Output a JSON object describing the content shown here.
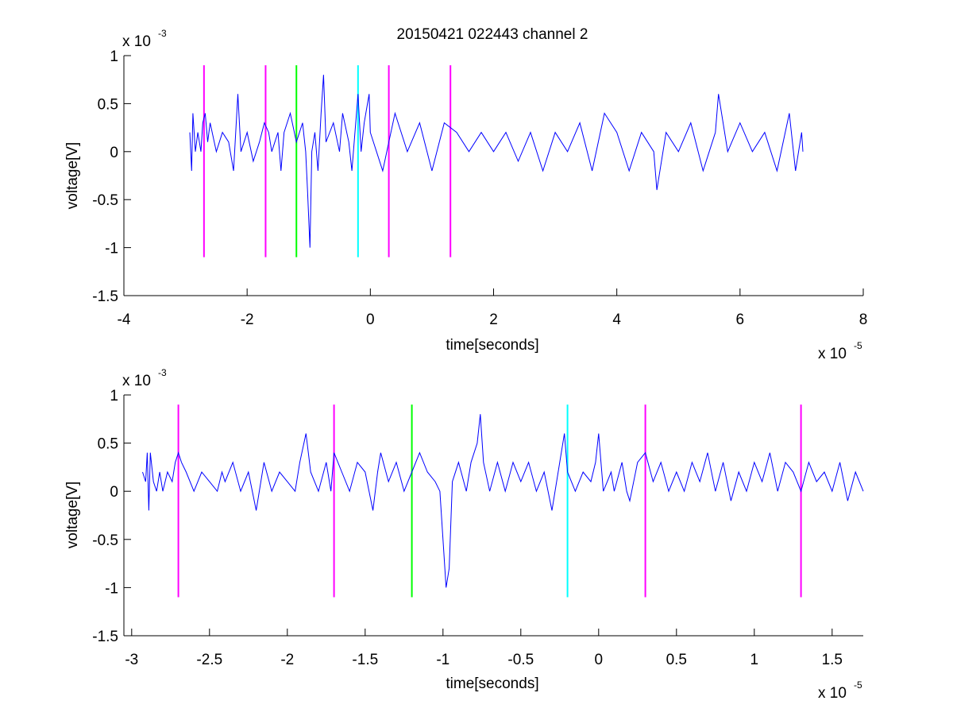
{
  "figure": {
    "title": "20150421 022443 channel 2"
  },
  "chart_data": [
    {
      "type": "line",
      "title": "20150421 022443 channel 2",
      "xlabel": "time[seconds]",
      "ylabel": "voltage[V]",
      "x_exponent_label": "x 10",
      "x_exponent": "-5",
      "y_exponent_label": "x 10",
      "y_exponent": "-3",
      "xlim": [
        -4,
        8
      ],
      "ylim": [
        -1.5,
        1
      ],
      "xticks": [
        -4,
        -2,
        0,
        2,
        4,
        6,
        8
      ],
      "xtick_labels": [
        "-4",
        "-2",
        "0",
        "2",
        "4",
        "6",
        "8"
      ],
      "yticks": [
        -1.5,
        -1,
        -0.5,
        0,
        0.5,
        1
      ],
      "ytick_labels": [
        "-1.5",
        "-1",
        "-0.5",
        "0",
        "0.5",
        "1"
      ],
      "grid": false,
      "series": [
        {
          "color": "#0000ff",
          "x_range": [
            -2.93,
            7.02
          ],
          "points": [
            [
              -2.93,
              0.2
            ],
            [
              -2.9,
              -0.2
            ],
            [
              -2.88,
              0.4
            ],
            [
              -2.84,
              0.0
            ],
            [
              -2.8,
              0.2
            ],
            [
              -2.75,
              0.0
            ],
            [
              -2.72,
              0.3
            ],
            [
              -2.68,
              0.4
            ],
            [
              -2.64,
              0.1
            ],
            [
              -2.6,
              0.3
            ],
            [
              -2.5,
              0.0
            ],
            [
              -2.4,
              0.2
            ],
            [
              -2.3,
              0.1
            ],
            [
              -2.22,
              -0.2
            ],
            [
              -2.15,
              0.6
            ],
            [
              -2.1,
              0.0
            ],
            [
              -2.0,
              0.2
            ],
            [
              -1.9,
              -0.1
            ],
            [
              -1.8,
              0.1
            ],
            [
              -1.72,
              0.3
            ],
            [
              -1.65,
              0.2
            ],
            [
              -1.6,
              0.0
            ],
            [
              -1.5,
              0.2
            ],
            [
              -1.45,
              -0.2
            ],
            [
              -1.4,
              0.2
            ],
            [
              -1.3,
              0.4
            ],
            [
              -1.2,
              0.1
            ],
            [
              -1.1,
              0.3
            ],
            [
              -1.05,
              0.0
            ],
            [
              -1.02,
              -0.4
            ],
            [
              -0.98,
              -1.0
            ],
            [
              -0.95,
              0.0
            ],
            [
              -0.9,
              0.2
            ],
            [
              -0.85,
              -0.2
            ],
            [
              -0.8,
              0.4
            ],
            [
              -0.76,
              0.8
            ],
            [
              -0.72,
              0.1
            ],
            [
              -0.6,
              0.3
            ],
            [
              -0.5,
              0.0
            ],
            [
              -0.45,
              0.4
            ],
            [
              -0.35,
              0.1
            ],
            [
              -0.3,
              -0.2
            ],
            [
              -0.2,
              0.6
            ],
            [
              -0.15,
              0.0
            ],
            [
              -0.1,
              0.3
            ],
            [
              -0.02,
              0.6
            ],
            [
              0.0,
              0.2
            ],
            [
              0.1,
              0.0
            ],
            [
              0.2,
              -0.2
            ],
            [
              0.3,
              0.1
            ],
            [
              0.4,
              0.4
            ],
            [
              0.6,
              0.0
            ],
            [
              0.8,
              0.3
            ],
            [
              1.0,
              -0.2
            ],
            [
              1.2,
              0.3
            ],
            [
              1.4,
              0.2
            ],
            [
              1.6,
              0.0
            ],
            [
              1.8,
              0.2
            ],
            [
              2.0,
              0.0
            ],
            [
              2.2,
              0.2
            ],
            [
              2.4,
              -0.1
            ],
            [
              2.6,
              0.2
            ],
            [
              2.8,
              -0.2
            ],
            [
              3.0,
              0.2
            ],
            [
              3.2,
              0.0
            ],
            [
              3.4,
              0.3
            ],
            [
              3.6,
              -0.2
            ],
            [
              3.8,
              0.4
            ],
            [
              4.0,
              0.2
            ],
            [
              4.2,
              -0.2
            ],
            [
              4.4,
              0.2
            ],
            [
              4.6,
              0.0
            ],
            [
              4.65,
              -0.4
            ],
            [
              4.8,
              0.2
            ],
            [
              5.0,
              0.0
            ],
            [
              5.2,
              0.3
            ],
            [
              5.4,
              -0.2
            ],
            [
              5.6,
              0.2
            ],
            [
              5.65,
              0.6
            ],
            [
              5.8,
              0.0
            ],
            [
              6.0,
              0.3
            ],
            [
              6.2,
              0.0
            ],
            [
              6.4,
              0.2
            ],
            [
              6.6,
              -0.2
            ],
            [
              6.8,
              0.4
            ],
            [
              6.9,
              -0.2
            ],
            [
              7.0,
              0.2
            ],
            [
              7.02,
              0.0
            ]
          ]
        }
      ],
      "vertical_markers": [
        {
          "x": -2.7,
          "ymin": -1.1,
          "ymax": 0.9,
          "color": "#ff00ff"
        },
        {
          "x": -1.7,
          "ymin": -1.1,
          "ymax": 0.9,
          "color": "#ff00ff"
        },
        {
          "x": -1.2,
          "ymin": -1.1,
          "ymax": 0.9,
          "color": "#00ff00"
        },
        {
          "x": -0.2,
          "ymin": -1.1,
          "ymax": 0.9,
          "color": "#00ffff"
        },
        {
          "x": 0.3,
          "ymin": -1.1,
          "ymax": 0.9,
          "color": "#ff00ff"
        },
        {
          "x": 1.3,
          "ymin": -1.1,
          "ymax": 0.9,
          "color": "#ff00ff"
        }
      ]
    },
    {
      "type": "line",
      "title": "",
      "xlabel": "time[seconds]",
      "ylabel": "voltage[V]",
      "x_exponent_label": "x 10",
      "x_exponent": "-5",
      "y_exponent_label": "x 10",
      "y_exponent": "-3",
      "xlim": [
        -3.05,
        1.7
      ],
      "ylim": [
        -1.5,
        1
      ],
      "xticks": [
        -3,
        -2.5,
        -2,
        -1.5,
        -1,
        -0.5,
        0,
        0.5,
        1,
        1.5
      ],
      "xtick_labels": [
        "-3",
        "-2.5",
        "-2",
        "-1.5",
        "-1",
        "-0.5",
        "0",
        "0.5",
        "1",
        "1.5"
      ],
      "yticks": [
        -1.5,
        -1,
        -0.5,
        0,
        0.5,
        1
      ],
      "ytick_labels": [
        "-1.5",
        "-1",
        "-0.5",
        "0",
        "0.5",
        "1"
      ],
      "grid": false,
      "series": [
        {
          "color": "#0000ff",
          "x_range": [
            -2.93,
            1.7
          ],
          "points": [
            [
              -2.93,
              0.2
            ],
            [
              -2.91,
              0.1
            ],
            [
              -2.9,
              0.4
            ],
            [
              -2.89,
              -0.2
            ],
            [
              -2.88,
              0.4
            ],
            [
              -2.86,
              0.1
            ],
            [
              -2.84,
              0.0
            ],
            [
              -2.82,
              0.2
            ],
            [
              -2.8,
              0.0
            ],
            [
              -2.77,
              0.2
            ],
            [
              -2.74,
              0.1
            ],
            [
              -2.72,
              0.3
            ],
            [
              -2.7,
              0.4
            ],
            [
              -2.68,
              0.3
            ],
            [
              -2.65,
              0.2
            ],
            [
              -2.6,
              0.0
            ],
            [
              -2.55,
              0.2
            ],
            [
              -2.5,
              0.1
            ],
            [
              -2.45,
              0.0
            ],
            [
              -2.42,
              0.2
            ],
            [
              -2.4,
              0.1
            ],
            [
              -2.35,
              0.3
            ],
            [
              -2.3,
              0.0
            ],
            [
              -2.25,
              0.2
            ],
            [
              -2.2,
              -0.2
            ],
            [
              -2.15,
              0.3
            ],
            [
              -2.1,
              0.0
            ],
            [
              -2.05,
              0.2
            ],
            [
              -2.0,
              0.1
            ],
            [
              -1.95,
              0.0
            ],
            [
              -1.92,
              0.3
            ],
            [
              -1.88,
              0.6
            ],
            [
              -1.85,
              0.2
            ],
            [
              -1.8,
              0.0
            ],
            [
              -1.75,
              0.3
            ],
            [
              -1.72,
              0.0
            ],
            [
              -1.7,
              0.4
            ],
            [
              -1.65,
              0.2
            ],
            [
              -1.6,
              0.0
            ],
            [
              -1.55,
              0.3
            ],
            [
              -1.5,
              0.2
            ],
            [
              -1.45,
              -0.2
            ],
            [
              -1.42,
              0.2
            ],
            [
              -1.4,
              0.4
            ],
            [
              -1.35,
              0.1
            ],
            [
              -1.3,
              0.3
            ],
            [
              -1.25,
              0.0
            ],
            [
              -1.2,
              0.2
            ],
            [
              -1.15,
              0.4
            ],
            [
              -1.1,
              0.2
            ],
            [
              -1.05,
              0.1
            ],
            [
              -1.02,
              0.0
            ],
            [
              -1.0,
              -0.5
            ],
            [
              -0.98,
              -1.0
            ],
            [
              -0.96,
              -0.8
            ],
            [
              -0.94,
              0.1
            ],
            [
              -0.9,
              0.3
            ],
            [
              -0.85,
              0.0
            ],
            [
              -0.82,
              0.3
            ],
            [
              -0.78,
              0.5
            ],
            [
              -0.76,
              0.8
            ],
            [
              -0.74,
              0.3
            ],
            [
              -0.7,
              0.0
            ],
            [
              -0.65,
              0.3
            ],
            [
              -0.6,
              0.0
            ],
            [
              -0.55,
              0.3
            ],
            [
              -0.5,
              0.1
            ],
            [
              -0.45,
              0.3
            ],
            [
              -0.4,
              0.0
            ],
            [
              -0.35,
              0.2
            ],
            [
              -0.3,
              -0.2
            ],
            [
              -0.25,
              0.3
            ],
            [
              -0.22,
              0.6
            ],
            [
              -0.2,
              0.2
            ],
            [
              -0.15,
              0.0
            ],
            [
              -0.1,
              0.2
            ],
            [
              -0.05,
              0.1
            ],
            [
              -0.02,
              0.3
            ],
            [
              0.0,
              0.6
            ],
            [
              0.03,
              0.0
            ],
            [
              0.08,
              0.2
            ],
            [
              0.1,
              0.0
            ],
            [
              0.15,
              0.3
            ],
            [
              0.18,
              0.0
            ],
            [
              0.2,
              -0.1
            ],
            [
              0.25,
              0.3
            ],
            [
              0.3,
              0.4
            ],
            [
              0.35,
              0.1
            ],
            [
              0.4,
              0.3
            ],
            [
              0.45,
              0.0
            ],
            [
              0.5,
              0.2
            ],
            [
              0.55,
              0.0
            ],
            [
              0.6,
              0.3
            ],
            [
              0.65,
              0.1
            ],
            [
              0.7,
              0.4
            ],
            [
              0.75,
              0.0
            ],
            [
              0.8,
              0.3
            ],
            [
              0.85,
              -0.1
            ],
            [
              0.9,
              0.2
            ],
            [
              0.95,
              0.0
            ],
            [
              1.0,
              0.3
            ],
            [
              1.05,
              0.1
            ],
            [
              1.1,
              0.4
            ],
            [
              1.15,
              0.0
            ],
            [
              1.2,
              0.3
            ],
            [
              1.25,
              0.2
            ],
            [
              1.3,
              0.0
            ],
            [
              1.35,
              0.3
            ],
            [
              1.4,
              0.1
            ],
            [
              1.45,
              0.2
            ],
            [
              1.5,
              0.0
            ],
            [
              1.55,
              0.3
            ],
            [
              1.6,
              -0.1
            ],
            [
              1.65,
              0.2
            ],
            [
              1.7,
              0.0
            ]
          ]
        }
      ],
      "vertical_markers": [
        {
          "x": -2.7,
          "ymin": -1.1,
          "ymax": 0.9,
          "color": "#ff00ff"
        },
        {
          "x": -1.7,
          "ymin": -1.1,
          "ymax": 0.9,
          "color": "#ff00ff"
        },
        {
          "x": -1.2,
          "ymin": -1.1,
          "ymax": 0.9,
          "color": "#00ff00"
        },
        {
          "x": -0.2,
          "ymin": -1.1,
          "ymax": 0.9,
          "color": "#00ffff"
        },
        {
          "x": 0.3,
          "ymin": -1.1,
          "ymax": 0.9,
          "color": "#ff00ff"
        },
        {
          "x": 1.3,
          "ymin": -1.1,
          "ymax": 0.9,
          "color": "#ff00ff"
        }
      ]
    }
  ]
}
